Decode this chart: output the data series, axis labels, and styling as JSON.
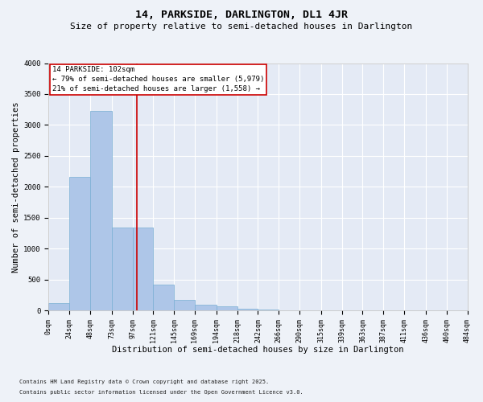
{
  "title": "14, PARKSIDE, DARLINGTON, DL1 4JR",
  "subtitle": "Size of property relative to semi-detached houses in Darlington",
  "xlabel": "Distribution of semi-detached houses by size in Darlington",
  "ylabel": "Number of semi-detached properties",
  "footnote1": "Contains HM Land Registry data © Crown copyright and database right 2025.",
  "footnote2": "Contains public sector information licensed under the Open Government Licence v3.0.",
  "bar_left_edges": [
    0,
    24,
    48,
    73,
    97,
    121,
    145,
    169,
    194,
    218,
    242,
    266,
    290,
    315,
    339,
    363,
    387,
    411,
    436,
    460
  ],
  "bar_widths": [
    24,
    24,
    25,
    24,
    24,
    24,
    24,
    25,
    24,
    24,
    24,
    24,
    25,
    24,
    24,
    24,
    24,
    25,
    24,
    24
  ],
  "bar_heights": [
    120,
    2160,
    3230,
    1340,
    1340,
    420,
    170,
    90,
    60,
    30,
    15,
    5,
    2,
    0,
    0,
    0,
    0,
    0,
    0,
    0
  ],
  "bar_color": "#aec6e8",
  "bar_edgecolor": "#7aafd4",
  "tick_labels": [
    "0sqm",
    "24sqm",
    "48sqm",
    "73sqm",
    "97sqm",
    "121sqm",
    "145sqm",
    "169sqm",
    "194sqm",
    "218sqm",
    "242sqm",
    "266sqm",
    "290sqm",
    "315sqm",
    "339sqm",
    "363sqm",
    "387sqm",
    "411sqm",
    "436sqm",
    "460sqm",
    "484sqm"
  ],
  "property_value": 102,
  "vline_color": "#cc0000",
  "annotation_text": "14 PARKSIDE: 102sqm\n← 79% of semi-detached houses are smaller (5,979)\n21% of semi-detached houses are larger (1,558) →",
  "annotation_box_color": "#cc0000",
  "ylim": [
    0,
    4000
  ],
  "yticks": [
    0,
    500,
    1000,
    1500,
    2000,
    2500,
    3000,
    3500,
    4000
  ],
  "background_color": "#eef2f8",
  "plot_bg_color": "#e4eaf5",
  "grid_color": "#ffffff",
  "title_fontsize": 9.5,
  "subtitle_fontsize": 8,
  "axis_label_fontsize": 7.5,
  "tick_fontsize": 6,
  "annotation_fontsize": 6.5,
  "footnote_fontsize": 5
}
